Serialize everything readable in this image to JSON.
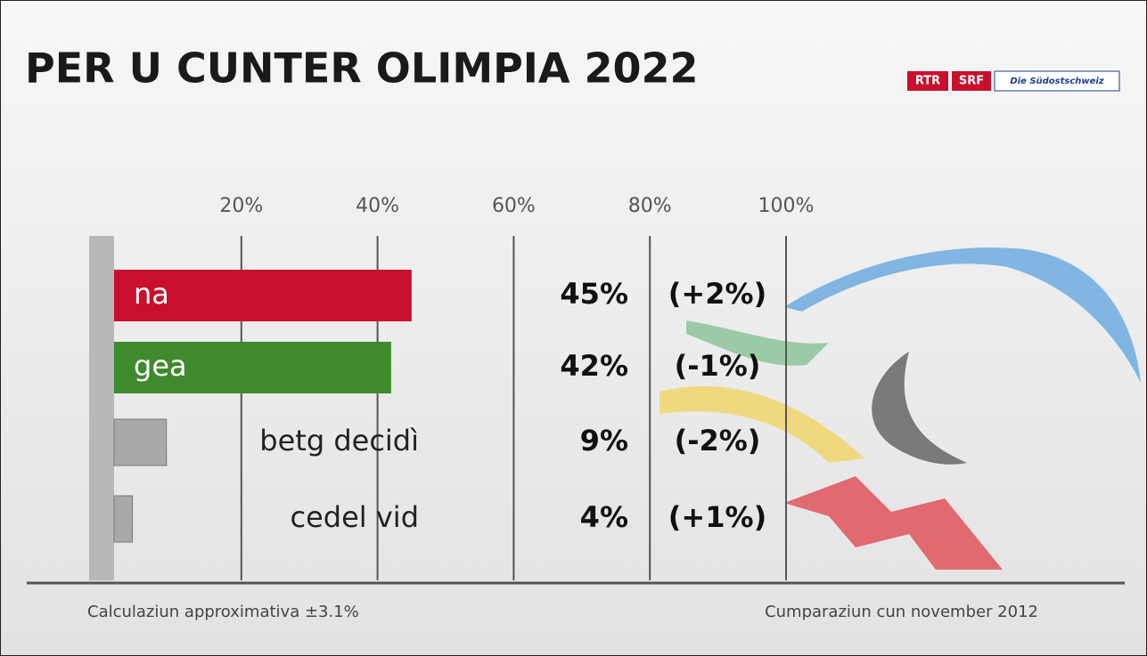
{
  "chart_data": {
    "type": "hbar",
    "title": "PER U CUNTER OLIMPIA 2022",
    "logos": [
      "RTR",
      "SRF",
      "Die Südostschweiz"
    ],
    "categories": [
      "na",
      "gea",
      "betg decidì",
      "cedel vid"
    ],
    "values": [
      45,
      42,
      9,
      4
    ],
    "value_labels": [
      "45%",
      "42%",
      "9%",
      "4%"
    ],
    "changes": [
      "(+2%)",
      "(-1%)",
      "(-2%)",
      "(+1%)"
    ],
    "colors": [
      "#c8102e",
      "#3f8a2c",
      "#a9a9a9",
      "#a9a9a9"
    ],
    "xlim": [
      0,
      100
    ],
    "xticks": [
      {
        "value": 20,
        "label": "20%"
      },
      {
        "value": 40,
        "label": "40%"
      },
      {
        "value": 60,
        "label": "60%"
      },
      {
        "value": 80,
        "label": "80%"
      },
      {
        "value": 100,
        "label": "100%"
      }
    ],
    "grid": true,
    "footnote_left": "Calculaziun approximativa ±3.1%",
    "footnote_right": "Cumparaziun cun november 2012"
  }
}
